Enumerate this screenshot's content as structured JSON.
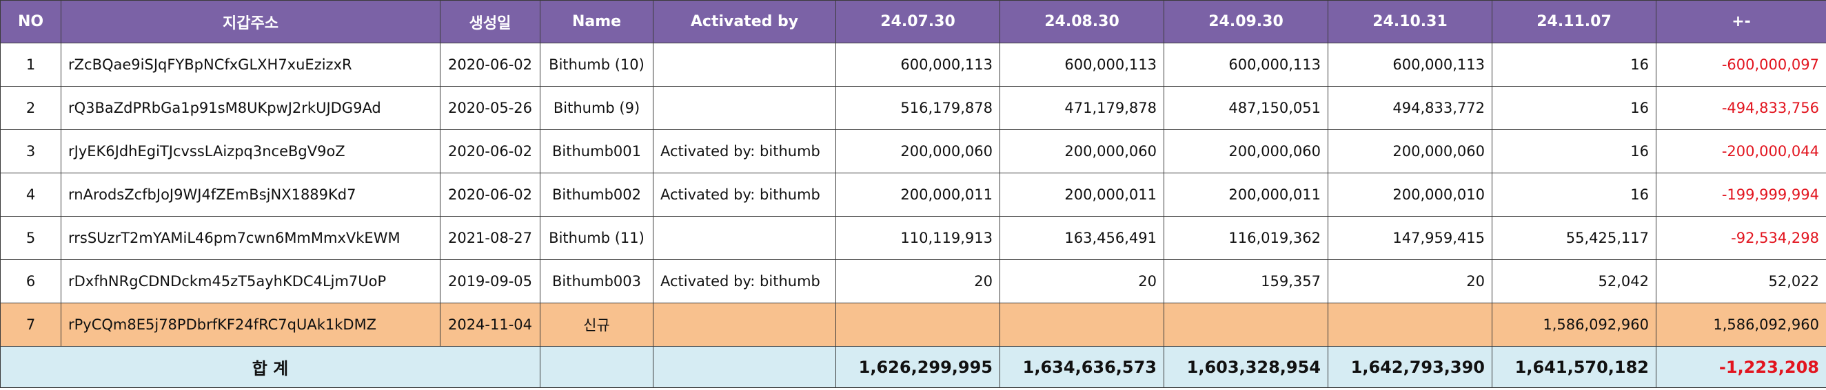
{
  "columns": [
    "NO",
    "지갑주소",
    "생성일",
    "Name",
    "Activated by",
    "24.07.30",
    "24.08.30",
    "24.09.30",
    "24.10.31",
    "24.11.07",
    "+-"
  ],
  "rows": [
    {
      "no": "1",
      "address": "rZcBQae9iSJqFYBpNCfxGLXH7xuEzizxR",
      "created": "2020-06-02",
      "name": "Bithumb (10)",
      "activated_by": "",
      "v0730": "600,000,113",
      "v0830": "600,000,113",
      "v0930": "600,000,113",
      "v1031": "600,000,113",
      "v1107": "16",
      "diff": "-600,000,097"
    },
    {
      "no": "2",
      "address": "rQ3BaZdPRbGa1p91sM8UKpwJ2rkUJDG9Ad",
      "created": "2020-05-26",
      "name": "Bithumb (9)",
      "activated_by": "",
      "v0730": "516,179,878",
      "v0830": "471,179,878",
      "v0930": "487,150,051",
      "v1031": "494,833,772",
      "v1107": "16",
      "diff": "-494,833,756"
    },
    {
      "no": "3",
      "address": "rJyEK6JdhEgiTJcvssLAizpq3nceBgV9oZ",
      "created": "2020-06-02",
      "name": "Bithumb001",
      "activated_by": "Activated by: bithumb",
      "v0730": "200,000,060",
      "v0830": "200,000,060",
      "v0930": "200,000,060",
      "v1031": "200,000,060",
      "v1107": "16",
      "diff": "-200,000,044"
    },
    {
      "no": "4",
      "address": "rnArodsZcfbJoJ9WJ4fZEmBsjNX1889Kd7",
      "created": "2020-06-02",
      "name": "Bithumb002",
      "activated_by": "Activated by: bithumb",
      "v0730": "200,000,011",
      "v0830": "200,000,011",
      "v0930": "200,000,011",
      "v1031": "200,000,010",
      "v1107": "16",
      "diff": "-199,999,994"
    },
    {
      "no": "5",
      "address": "rrsSUzrT2mYAMiL46pm7cwn6MmMmxVkEWM",
      "created": "2021-08-27",
      "name": "Bithumb (11)",
      "activated_by": "",
      "v0730": "110,119,913",
      "v0830": "163,456,491",
      "v0930": "116,019,362",
      "v1031": "147,959,415",
      "v1107": "55,425,117",
      "diff": "-92,534,298"
    },
    {
      "no": "6",
      "address": "rDxfhNRgCDNDckm45zT5ayhKDC4Ljm7UoP",
      "created": "2019-09-05",
      "name": "Bithumb003",
      "activated_by": "Activated by: bithumb",
      "v0730": "20",
      "v0830": "20",
      "v0930": "159,357",
      "v1031": "20",
      "v1107": "52,042",
      "diff": "52,022"
    },
    {
      "no": "7",
      "address": "rPyCQm8E5j78PDbrfKF24fRC7qUAk1kDMZ",
      "created": "2024-11-04",
      "name": "신규",
      "activated_by": "",
      "v0730": "",
      "v0830": "",
      "v0930": "",
      "v1031": "",
      "v1107": "1,586,092,960",
      "diff": "1,586,092,960"
    }
  ],
  "totals": {
    "label": "합 계",
    "v0730": "1,626,299,995",
    "v0830": "1,634,636,573",
    "v0930": "1,603,328,954",
    "v1031": "1,642,793,390",
    "v1107": "1,641,570,182",
    "diff": "-1,223,208"
  },
  "colors": {
    "header_bg": "#7b62a6",
    "new_row_bg": "#f8c18e",
    "total_row_bg": "#d6ecf3",
    "negative_text": "#e2151f"
  }
}
